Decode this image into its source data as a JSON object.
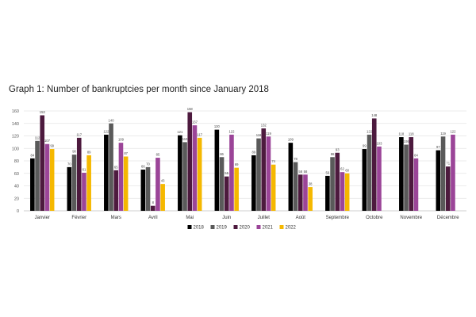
{
  "chart_data": {
    "type": "bar",
    "title": "Graph 1: Number of bankruptcies per month since January 2018",
    "categories": [
      "Janvier",
      "Février",
      "Mars",
      "Avril",
      "Mai",
      "Juin",
      "Juillet",
      "Août",
      "Septembre",
      "Octobre",
      "Novembre",
      "Décembre"
    ],
    "series": [
      {
        "name": "2018",
        "color": "#000000",
        "values": [
          84,
          70,
          122,
          66,
          121,
          130,
          89,
          109,
          56,
          99,
          118,
          97
        ]
      },
      {
        "name": "2019",
        "color": "#5a5a5a",
        "values": [
          112,
          90,
          140,
          70,
          110,
          86,
          116,
          78,
          86,
          122,
          106,
          119
        ]
      },
      {
        "name": "2020",
        "color": "#4d1a3e",
        "values": [
          153,
          117,
          65,
          8,
          158,
          55,
          132,
          58,
          93,
          148,
          118,
          71
        ]
      },
      {
        "name": "2021",
        "color": "#9b4598",
        "values": [
          107,
          61,
          109,
          85,
          137,
          122,
          119,
          58,
          62,
          103,
          84,
          122
        ]
      },
      {
        "name": "2022",
        "color": "#f5b800",
        "values": [
          99,
          89,
          87,
          43,
          117,
          69,
          74,
          38,
          60,
          null,
          null,
          null
        ]
      }
    ],
    "yticks": [
      0,
      20,
      40,
      60,
      80,
      100,
      120,
      140,
      160
    ],
    "ylim": [
      0,
      160
    ],
    "grid": true,
    "legend": "bottom"
  }
}
